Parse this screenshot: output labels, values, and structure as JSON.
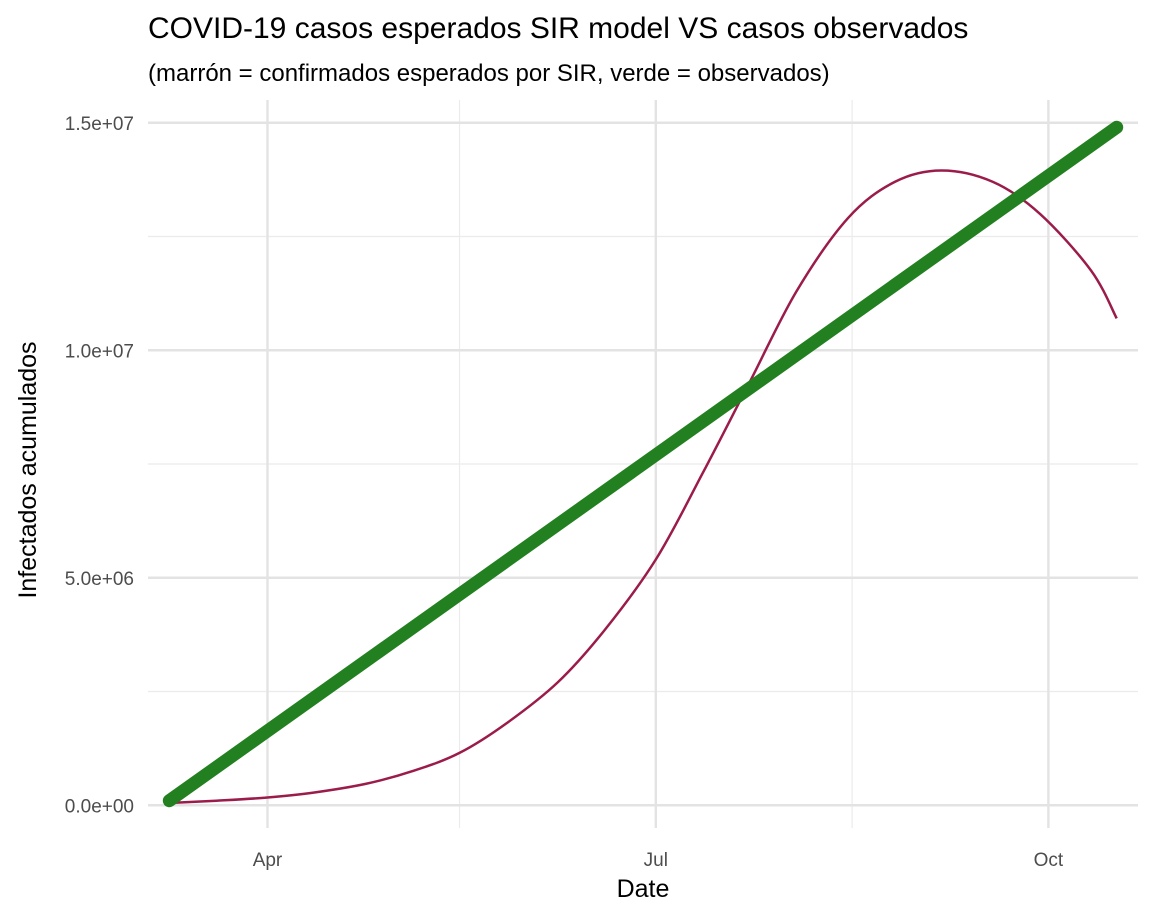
{
  "chart_data": {
    "type": "line",
    "title": "COVID-19 casos esperados SIR model VS casos observados",
    "subtitle": "(marrón = confirmados esperados por SIR, verde = observados)",
    "xlabel": "Date",
    "ylabel": "Infectados acumulados",
    "x_range": [
      "2020-03-04",
      "2020-10-22"
    ],
    "ylim": [
      -500000,
      15500000
    ],
    "x_ticks": [
      {
        "date": "2020-04-01",
        "label": "Apr"
      },
      {
        "date": "2020-07-01",
        "label": "Jul"
      },
      {
        "date": "2020-10-01",
        "label": "Oct"
      }
    ],
    "x_minor_ticks": [
      "2020-05-16",
      "2020-08-16"
    ],
    "y_ticks": [
      {
        "value": 0,
        "label": "0.0e+00"
      },
      {
        "value": 5000000,
        "label": "5.0e+06"
      },
      {
        "value": 10000000,
        "label": "1.0e+07"
      },
      {
        "value": 15000000,
        "label": "1.5e+07"
      }
    ],
    "y_minor_ticks": [
      2500000,
      7500000,
      12500000
    ],
    "grid": true,
    "legend": "none",
    "series": [
      {
        "color": "#9b1c4a",
        "x": [
          "2020-03-09",
          "2020-03-20",
          "2020-04-01",
          "2020-04-12",
          "2020-04-24",
          "2020-05-05",
          "2020-05-16",
          "2020-05-27",
          "2020-06-08",
          "2020-06-19",
          "2020-07-01",
          "2020-07-12",
          "2020-07-23",
          "2020-08-03",
          "2020-08-15",
          "2020-08-26",
          "2020-09-06",
          "2020-09-18",
          "2020-09-29",
          "2020-10-11",
          "2020-10-17"
        ],
        "values": [
          50000,
          100000,
          170000,
          280000,
          470000,
          750000,
          1150000,
          1800000,
          2700000,
          3850000,
          5400000,
          7300000,
          9300000,
          11300000,
          12900000,
          13700000,
          13950000,
          13700000,
          13000000,
          11750000,
          10700000
        ]
      },
      {
        "color": "#238020",
        "x": [
          "2020-03-09",
          "2020-10-17"
        ],
        "values": [
          100000,
          14900000
        ]
      }
    ]
  }
}
